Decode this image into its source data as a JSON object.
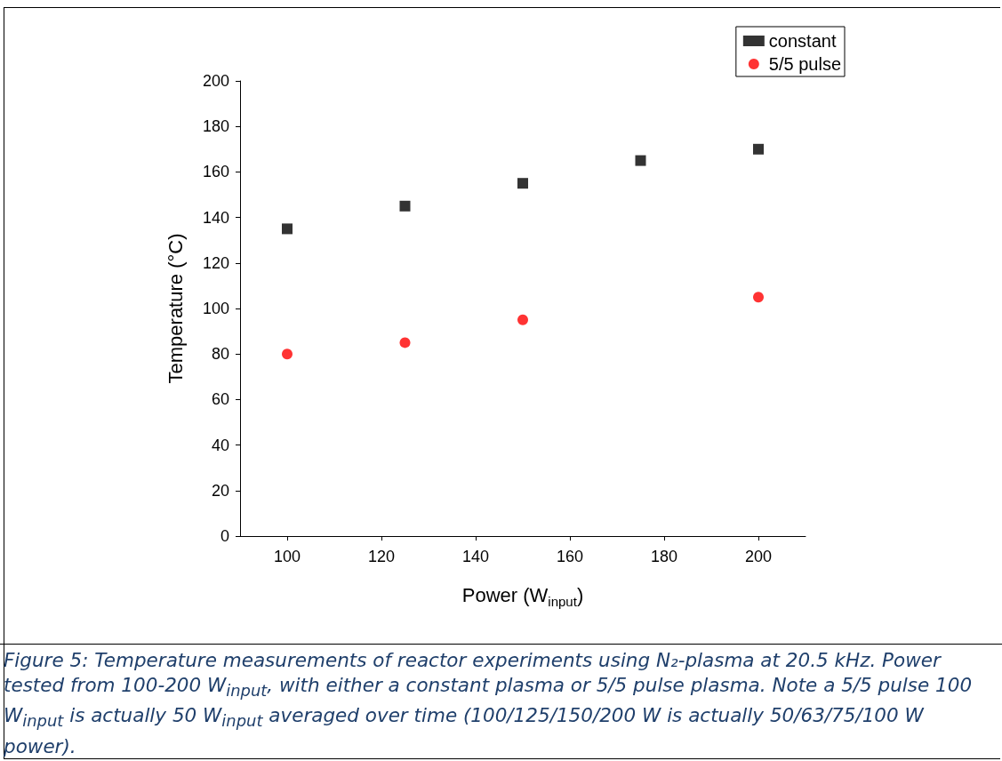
{
  "chart_data": {
    "type": "scatter",
    "xlabel": "Power (W$_{input}$)",
    "ylabel": "Temperature (°C)",
    "xlim": [
      90,
      210
    ],
    "xticks": [
      100,
      120,
      140,
      160,
      180,
      200
    ],
    "ylim": [
      0,
      200
    ],
    "yticks": [
      0,
      20,
      40,
      60,
      80,
      100,
      120,
      140,
      160,
      180,
      200
    ],
    "grid": false,
    "legend": "top right",
    "series": [
      {
        "name": "constant",
        "color": "#000000",
        "marker": "square",
        "x": [
          100,
          125,
          150,
          175,
          200
        ],
        "values": [
          135,
          145,
          155,
          165,
          170
        ]
      },
      {
        "name": "5/5 pulse",
        "color": "#ff0000",
        "marker": "circle",
        "x": [
          100,
          125,
          150,
          200
        ],
        "values": [
          80,
          85,
          95,
          105
        ]
      }
    ],
    "annotations": [
      "Figure 5: Temperature measurements of reactor experiments using N₂-plasma at 20.5 kHz. Power tested from 100-200 W$_{input}$, with either a constant plasma or 5/5 pulse plasma. Note a 5/5 pulse 100 W$_{input}$ is actually 50 W$_{input}$ averaged over time (100/125/150/200 W is actually 50/63/75/100 W power)."
    ]
  }
}
